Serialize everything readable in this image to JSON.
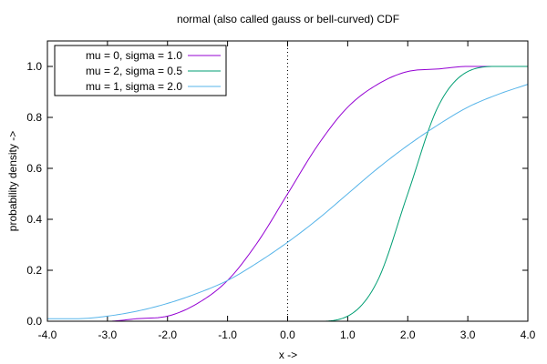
{
  "chart_data": {
    "type": "line",
    "title": "normal (also called gauss or bell-curved) CDF",
    "xlabel": "x ->",
    "ylabel": "probability density ->",
    "xlim": [
      -4,
      4
    ],
    "ylim": [
      0,
      1.1
    ],
    "grid": false,
    "legend_position": "top-left",
    "x_ticks": [
      -4,
      -3,
      -2,
      -1,
      0,
      1,
      2,
      3,
      4
    ],
    "x_tick_labels": [
      "-4.0",
      "-3.0",
      "-2.0",
      "-1.0",
      "0.0",
      "1.0",
      "2.0",
      "3.0",
      "4.0"
    ],
    "y_ticks": [
      0,
      0.2,
      0.4,
      0.6,
      0.8,
      1.0
    ],
    "y_tick_labels": [
      "0.0",
      "0.2",
      "0.4",
      "0.6",
      "0.8",
      "1.0"
    ],
    "reference_line": {
      "x": 0,
      "style": "dotted"
    },
    "x": [
      -4.0,
      -3.5,
      -3.0,
      -2.5,
      -2.0,
      -1.5,
      -1.0,
      -0.5,
      0.0,
      0.5,
      1.0,
      1.5,
      2.0,
      2.5,
      3.0,
      3.5,
      4.0
    ],
    "series": [
      {
        "name": "mu = 0, sigma = 1.0",
        "color": "#9400d3",
        "values": [
          0.0,
          0.0,
          0.0,
          0.01,
          0.02,
          0.07,
          0.16,
          0.31,
          0.5,
          0.69,
          0.84,
          0.93,
          0.98,
          0.99,
          1.0,
          1.0,
          1.0
        ]
      },
      {
        "name": "mu = 2, sigma = 0.5",
        "color": "#009e73",
        "values": [
          0.0,
          0.0,
          0.0,
          0.0,
          0.0,
          0.0,
          0.0,
          0.0,
          0.0,
          0.0,
          0.02,
          0.16,
          0.5,
          0.84,
          0.98,
          1.0,
          1.0
        ]
      },
      {
        "name": "mu = 1, sigma = 2.0",
        "color": "#56b4e9",
        "values": [
          0.01,
          0.01,
          0.02,
          0.04,
          0.07,
          0.11,
          0.16,
          0.23,
          0.31,
          0.4,
          0.5,
          0.6,
          0.69,
          0.77,
          0.84,
          0.89,
          0.93
        ]
      }
    ]
  }
}
